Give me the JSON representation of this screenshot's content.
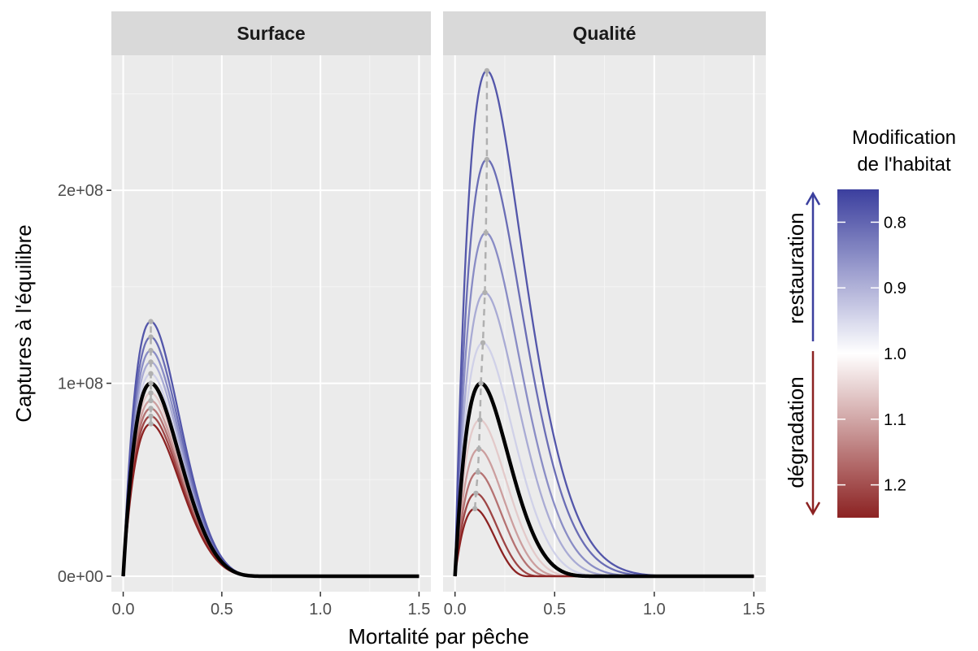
{
  "chart_data": {
    "type": "line",
    "xlabel": "Mortalité par pêche",
    "ylabel": "Captures à l'équilibre",
    "xlim": [
      -0.06,
      1.56
    ],
    "ylim": [
      -8000000.0,
      270000000.0
    ],
    "x_ticks": [
      0.0,
      0.5,
      1.0,
      1.5
    ],
    "x_tick_labels": [
      "0.0",
      "0.5",
      "1.0",
      "1.5"
    ],
    "y_ticks": [
      0,
      100000000,
      200000000
    ],
    "y_tick_labels": [
      "0e+00",
      "1e+08",
      "2e+08"
    ],
    "grid": true,
    "colors": {
      "restoration": "#3b3f9e",
      "neutral": "#ffffff",
      "degradation": "#8c2222",
      "baseline": "#000000",
      "optimum": "#b0b0b0"
    },
    "panels": [
      {
        "title": "Surface",
        "baseline": {
          "fmax": 0.75,
          "peak_x": 0.14,
          "peak_y": 100000000
        },
        "series": [
          {
            "modif": 0.78,
            "fmax": 0.75,
            "peak_x": 0.14,
            "peak_y": 132000000
          },
          {
            "modif": 0.81,
            "fmax": 0.75,
            "peak_x": 0.14,
            "peak_y": 124000000
          },
          {
            "modif": 0.85,
            "fmax": 0.75,
            "peak_x": 0.14,
            "peak_y": 117000000
          },
          {
            "modif": 0.89,
            "fmax": 0.75,
            "peak_x": 0.14,
            "peak_y": 111000000
          },
          {
            "modif": 0.94,
            "fmax": 0.75,
            "peak_x": 0.14,
            "peak_y": 105000000
          },
          {
            "modif": 1.06,
            "fmax": 0.75,
            "peak_x": 0.14,
            "peak_y": 95000000
          },
          {
            "modif": 1.11,
            "fmax": 0.75,
            "peak_x": 0.14,
            "peak_y": 91000000
          },
          {
            "modif": 1.16,
            "fmax": 0.75,
            "peak_x": 0.14,
            "peak_y": 87000000
          },
          {
            "modif": 1.21,
            "fmax": 0.75,
            "peak_x": 0.14,
            "peak_y": 83000000
          },
          {
            "modif": 1.25,
            "fmax": 0.75,
            "peak_x": 0.14,
            "peak_y": 79000000
          }
        ]
      },
      {
        "title": "Qualité",
        "baseline": {
          "fmax": 0.75,
          "peak_x": 0.13,
          "peak_y": 100000000
        },
        "series": [
          {
            "modif": 0.78,
            "fmax": 1.5,
            "peak_x": 0.16,
            "peak_y": 262000000
          },
          {
            "modif": 0.81,
            "fmax": 1.32,
            "peak_x": 0.16,
            "peak_y": 216000000
          },
          {
            "modif": 0.85,
            "fmax": 1.13,
            "peak_x": 0.155,
            "peak_y": 178000000
          },
          {
            "modif": 0.89,
            "fmax": 0.97,
            "peak_x": 0.15,
            "peak_y": 147000000
          },
          {
            "modif": 0.94,
            "fmax": 0.85,
            "peak_x": 0.14,
            "peak_y": 121000000
          },
          {
            "modif": 1.06,
            "fmax": 0.66,
            "peak_x": 0.125,
            "peak_y": 81000000
          },
          {
            "modif": 1.11,
            "fmax": 0.58,
            "peak_x": 0.12,
            "peak_y": 66000000
          },
          {
            "modif": 1.16,
            "fmax": 0.51,
            "peak_x": 0.115,
            "peak_y": 54000000
          },
          {
            "modif": 1.21,
            "fmax": 0.44,
            "peak_x": 0.105,
            "peak_y": 43000000
          },
          {
            "modif": 1.25,
            "fmax": 0.37,
            "peak_x": 0.1,
            "peak_y": 35000000
          }
        ]
      }
    ],
    "legend": {
      "title_lines": [
        "Modification",
        "de l'habitat"
      ],
      "range": [
        0.75,
        1.25
      ],
      "ticks": [
        0.8,
        0.9,
        1.0,
        1.1,
        1.2
      ],
      "tick_labels": [
        "0.8",
        "0.9",
        "1.0",
        "1.1",
        "1.2"
      ],
      "placement": "right"
    },
    "annotations": {
      "restoration": "restauration",
      "degradation": "dégradation"
    }
  }
}
